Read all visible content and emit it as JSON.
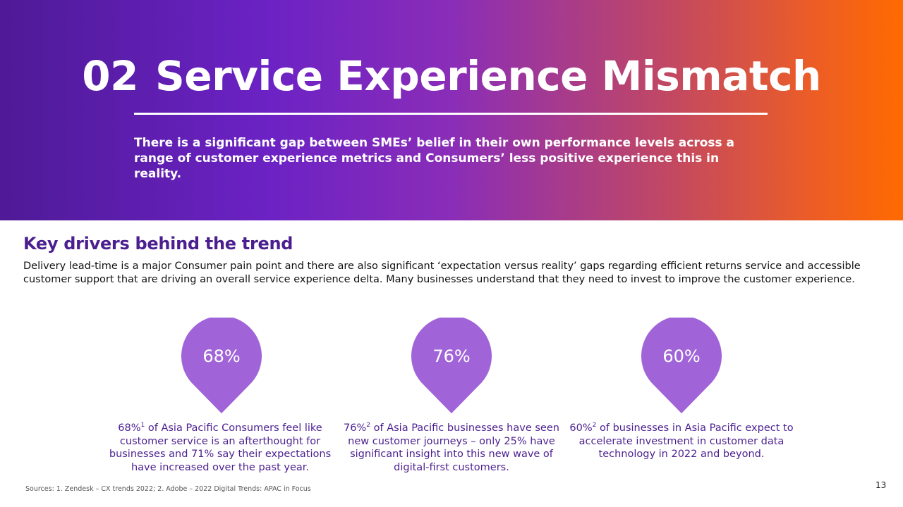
{
  "header": {
    "section_number": "02",
    "title": "Service Experience Mismatch",
    "subtitle": "There is a significant gap between SMEs’ belief in their own performance levels across a range of customer experience metrics and Consumers’ less positive experience this in reality."
  },
  "drivers": {
    "heading": "Key drivers behind the trend",
    "body": "Delivery lead-time is a major Consumer pain point and there are also significant ‘expectation versus reality’ gaps regarding efficient returns service and accessible customer support that are driving an overall service experience delta. Many businesses understand that they need to invest to improve the customer experience."
  },
  "stats": [
    {
      "value": "68%",
      "lead": "68%",
      "footnote": "1",
      "text": " of Asia Pacific Consumers feel like customer service is an afterthought for businesses and 71% say their expectations have increased over the past year."
    },
    {
      "value": "76%",
      "lead": "76%",
      "footnote": "2",
      "text": " of Asia Pacific businesses have seen new customer journeys – only 25% have significant insight into this new wave of digital-first customers."
    },
    {
      "value": "60%",
      "lead": "60%",
      "footnote": "2",
      "text": " of businesses in Asia Pacific expect to accelerate investment in customer data technology in 2022 and beyond."
    }
  ],
  "footer": {
    "sources": "Sources: 1. Zendesk – CX trends 2022; 2. Adobe – 2022 Digital Trends: APAC in Focus",
    "page_number": "13"
  },
  "colors": {
    "pin_fill": "#a064d8",
    "heading": "#4b1f8f",
    "gradient_start": "#4e1a97",
    "gradient_end": "#ff6a00"
  }
}
